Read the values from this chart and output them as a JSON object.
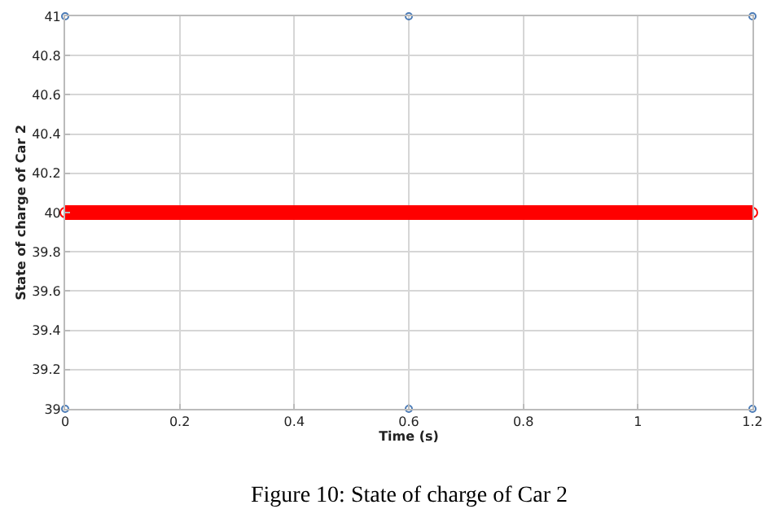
{
  "chart_data": {
    "type": "line",
    "xlabel": "Time (s)",
    "ylabel": "State of charge of Car 2",
    "annotations": [
      "Figure 10: State of charge of Car 2"
    ],
    "series": [
      {
        "color": "#ff0000",
        "marker": "circle",
        "x": [
          0,
          0.1,
          0.2,
          0.3,
          0.4,
          0.5,
          0.6,
          0.7,
          0.8,
          0.9,
          1.0,
          1.1,
          1.2
        ],
        "values": [
          40,
          40,
          40,
          40,
          40,
          40,
          40,
          40,
          40,
          40,
          40,
          40,
          40
        ]
      },
      {
        "type": "scatter",
        "color": "#4a7ab5",
        "marker": "circle",
        "x": [
          0,
          0.6,
          1.2
        ],
        "values": [
          41,
          41,
          41
        ]
      },
      {
        "type": "scatter",
        "color": "#4a7ab5",
        "marker": "circle",
        "x": [
          0,
          0.6,
          1.2
        ],
        "values": [
          39,
          39,
          39
        ]
      }
    ],
    "xlim": [
      0,
      1.2
    ],
    "xticks": [
      0,
      0.2,
      0.4,
      0.6,
      0.8,
      1,
      1.2
    ],
    "ylim": [
      39,
      41
    ],
    "yticks": [
      39,
      39.2,
      39.4,
      39.6,
      39.8,
      40,
      40.2,
      40.4,
      40.6,
      40.8,
      41
    ],
    "grid": true
  }
}
